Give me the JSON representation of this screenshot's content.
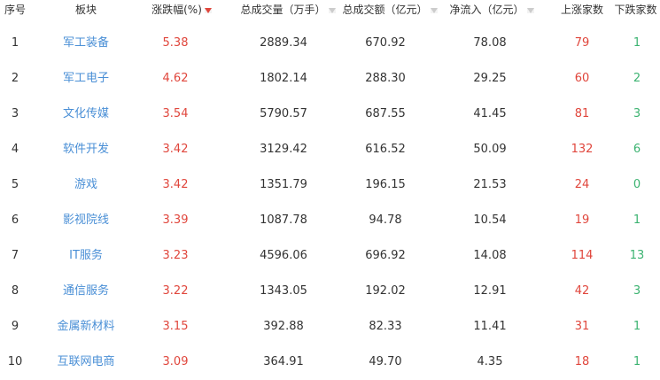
{
  "headers": {
    "rank": "序号",
    "sector": "板块",
    "change": "涨跌幅(%)",
    "volume": "总成交量（万手）",
    "amount": "总成交额（亿元）",
    "inflow": "净流入（亿元）",
    "up": "上涨家数",
    "down": "下跌家数"
  },
  "sort_icons": {
    "change": "sort-desc-active",
    "volume": "sort",
    "amount": "sort",
    "inflow": "sort"
  },
  "colors": {
    "up": "#e0463c",
    "link": "#4a8fd6",
    "down": "#3cb371"
  },
  "rows": [
    {
      "rank": "1",
      "sector": "军工装备",
      "change": "5.38",
      "volume": "2889.34",
      "amount": "670.92",
      "inflow": "78.08",
      "up": "79",
      "down": "1"
    },
    {
      "rank": "2",
      "sector": "军工电子",
      "change": "4.62",
      "volume": "1802.14",
      "amount": "288.30",
      "inflow": "29.25",
      "up": "60",
      "down": "2"
    },
    {
      "rank": "3",
      "sector": "文化传媒",
      "change": "3.54",
      "volume": "5790.57",
      "amount": "687.55",
      "inflow": "41.45",
      "up": "81",
      "down": "3"
    },
    {
      "rank": "4",
      "sector": "软件开发",
      "change": "3.42",
      "volume": "3129.42",
      "amount": "616.52",
      "inflow": "50.09",
      "up": "132",
      "down": "6"
    },
    {
      "rank": "5",
      "sector": "游戏",
      "change": "3.42",
      "volume": "1351.79",
      "amount": "196.15",
      "inflow": "21.53",
      "up": "24",
      "down": "0"
    },
    {
      "rank": "6",
      "sector": "影视院线",
      "change": "3.39",
      "volume": "1087.78",
      "amount": "94.78",
      "inflow": "10.54",
      "up": "19",
      "down": "1"
    },
    {
      "rank": "7",
      "sector": "IT服务",
      "change": "3.23",
      "volume": "4596.06",
      "amount": "696.92",
      "inflow": "14.08",
      "up": "114",
      "down": "13"
    },
    {
      "rank": "8",
      "sector": "通信服务",
      "change": "3.22",
      "volume": "1343.05",
      "amount": "192.02",
      "inflow": "12.91",
      "up": "42",
      "down": "3"
    },
    {
      "rank": "9",
      "sector": "金属新材料",
      "change": "3.15",
      "volume": "392.88",
      "amount": "82.33",
      "inflow": "11.41",
      "up": "31",
      "down": "1"
    },
    {
      "rank": "10",
      "sector": "互联网电商",
      "change": "3.09",
      "volume": "364.91",
      "amount": "49.70",
      "inflow": "4.35",
      "up": "18",
      "down": "1"
    }
  ]
}
